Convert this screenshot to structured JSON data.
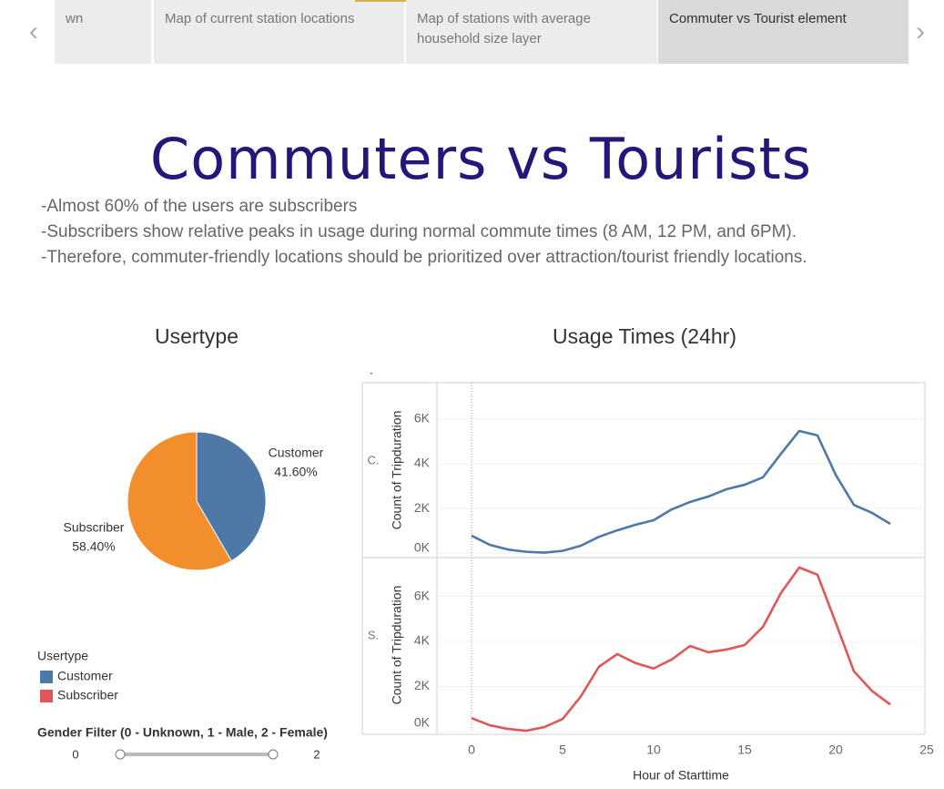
{
  "tabs": [
    "wn",
    "Map of current station locations",
    "Map of stations with average household size layer",
    "Commuter vs Tourist element"
  ],
  "title": "Commuters vs Tourists",
  "notes": [
    "-Almost 60% of the users are subscribers",
    "-Subscribers show relative peaks in usage during normal commute times (8 AM, 12 PM, and 6PM).",
    "-Therefore, commuter-friendly locations should be prioritized over attraction/tourist friendly locations."
  ],
  "chart_data": [
    {
      "type": "pie",
      "title": "Usertype",
      "categories": [
        "Customer",
        "Subscriber"
      ],
      "values": [
        41.6,
        58.4
      ],
      "value_labels": [
        "41.60%",
        "58.40%"
      ],
      "colors": [
        "#4e79a7",
        "#f28e2b"
      ]
    },
    {
      "type": "line",
      "title": "Usage Times (24hr)",
      "annotation": ".",
      "xlabel": "Hour of Starttime",
      "x": [
        0,
        1,
        2,
        3,
        4,
        5,
        6,
        7,
        8,
        9,
        10,
        11,
        12,
        13,
        14,
        15,
        16,
        17,
        18,
        19,
        20,
        21,
        22,
        23
      ],
      "xlim": [
        -1.9,
        24.9
      ],
      "xticks": [
        0,
        5,
        10,
        15,
        20,
        25
      ],
      "panels": [
        {
          "label": "C.",
          "ylabel": "Count of Tripduration",
          "color": "#4e79a7",
          "ylim": [
            -200,
            7630
          ],
          "yticks": [
            {
              "value": 0,
              "label": "0K"
            },
            {
              "value": 2000,
              "label": "2K"
            },
            {
              "value": 4000,
              "label": "4K"
            },
            {
              "value": 6000,
              "label": "6K"
            }
          ],
          "values": [
            780,
            370,
            160,
            60,
            20,
            100,
            330,
            730,
            1020,
            1270,
            1470,
            1960,
            2290,
            2530,
            2860,
            3060,
            3390,
            4450,
            5470,
            5270,
            3510,
            2160,
            1800,
            1310
          ]
        },
        {
          "label": "S.",
          "ylabel": "Count of Tripduration",
          "color": "#e15759",
          "ylim": [
            -40,
            7720
          ],
          "yticks": [
            {
              "value": 0,
              "label": "0K"
            },
            {
              "value": 2000,
              "label": "2K"
            },
            {
              "value": 4000,
              "label": "4K"
            },
            {
              "value": 6000,
              "label": "6K"
            }
          ],
          "values": [
            600,
            280,
            120,
            40,
            200,
            560,
            1560,
            2880,
            3440,
            3040,
            2800,
            3200,
            3800,
            3520,
            3640,
            3840,
            4640,
            6160,
            7280,
            6960,
            4840,
            2680,
            1800,
            1200
          ]
        }
      ]
    }
  ],
  "legend": {
    "title": "Usertype",
    "items": [
      {
        "name": "Customer",
        "color": "#4e79a7"
      },
      {
        "name": "Subscriber",
        "color": "#e15759"
      }
    ]
  },
  "filter": {
    "label": "Gender Filter (0 - Unknown, 1 - Male, 2 - Female)",
    "min": 0,
    "max": 2
  }
}
